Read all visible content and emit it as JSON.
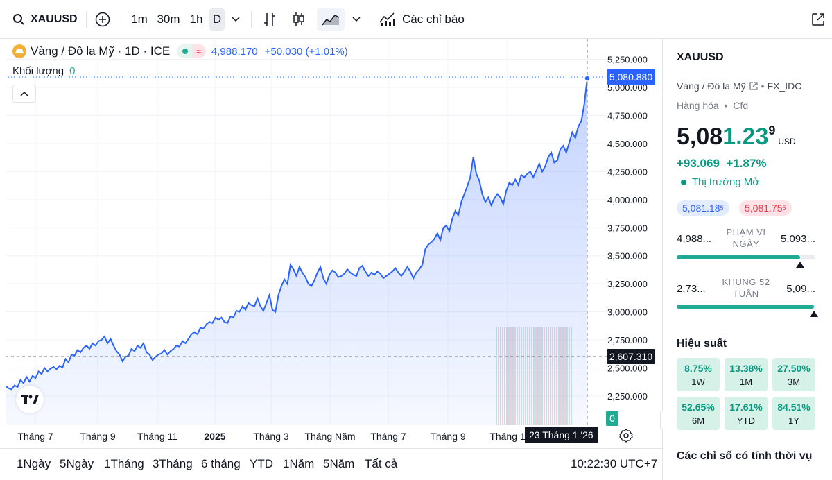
{
  "toolbar": {
    "symbol": "XAUUSD",
    "intervals": [
      "1m",
      "30m",
      "1h",
      "D"
    ],
    "active_interval": "D",
    "indicators_label": "Các chỉ báo"
  },
  "legend": {
    "title": "Vàng / Đô la Mỹ · 1D · ICE",
    "price": "4,988.170",
    "change": "+50.030 (+1.01%)",
    "volume_label": "Khối lượng",
    "volume_value": "0"
  },
  "price_axis": {
    "ticks": [
      "5,250.000",
      "5,000.000",
      "4,750.000",
      "4,500.000",
      "4,250.000",
      "4,000.000",
      "3,750.000",
      "3,500.000",
      "3,250.000",
      "3,000.000",
      "2,750.000",
      "2,500.000",
      "2,250.000"
    ],
    "current_price_tag": "5,080.880",
    "crosshair_price_tag": "2,607.310",
    "volume_tag": "0"
  },
  "time_axis": {
    "ticks": [
      "Tháng 7",
      "Tháng 9",
      "Tháng 11",
      "2025",
      "Tháng 3",
      "Tháng Năm",
      "Tháng 7",
      "Tháng 9",
      "Tháng 1"
    ],
    "crosshair_date": "23 Tháng 1 '26"
  },
  "chart_data": {
    "type": "area",
    "series": [
      {
        "values": [
          2340,
          2320,
          2310,
          2345,
          2330,
          2395,
          2365,
          2420,
          2380,
          2430,
          2410,
          2470,
          2445,
          2500,
          2470,
          2495,
          2510,
          2490,
          2520,
          2505,
          2580,
          2550,
          2620,
          2610,
          2660,
          2640,
          2680,
          2700,
          2670,
          2720,
          2700,
          2740,
          2750,
          2780,
          2720,
          2760,
          2700,
          2650,
          2620,
          2560,
          2600,
          2610,
          2670,
          2650,
          2700,
          2680,
          2720,
          2640,
          2620,
          2570,
          2600,
          2620,
          2630,
          2660,
          2620,
          2650,
          2670,
          2700,
          2690,
          2740,
          2720,
          2760,
          2800,
          2820,
          2800,
          2860,
          2850,
          2890,
          2910,
          2900,
          2950,
          2930,
          2950,
          2910,
          2900,
          2960,
          2950,
          3010,
          3000,
          3050,
          3020,
          3080,
          3060,
          3050,
          3120,
          3050,
          3010,
          3080,
          3150,
          3020,
          3000,
          3150,
          3230,
          3290,
          3250,
          3420,
          3380,
          3320,
          3400,
          3350,
          3310,
          3250,
          3230,
          3280,
          3350,
          3400,
          3300,
          3250,
          3330,
          3370,
          3350,
          3310,
          3320,
          3340,
          3380,
          3350,
          3330,
          3320,
          3390,
          3410,
          3360,
          3320,
          3350,
          3330,
          3360,
          3340,
          3300,
          3320,
          3340,
          3360,
          3390,
          3350,
          3320,
          3360,
          3400,
          3360,
          3300,
          3350,
          3380,
          3420,
          3560,
          3600,
          3620,
          3650,
          3700,
          3640,
          3750,
          3770,
          3720,
          3830,
          3900,
          3860,
          3980,
          4050,
          4120,
          4200,
          4380,
          4230,
          4170,
          4050,
          3980,
          4020,
          3950,
          4010,
          4050,
          4020,
          3960,
          4080,
          4150,
          4130,
          4180,
          4130,
          4220,
          4200,
          4230,
          4250,
          4200,
          4260,
          4320,
          4250,
          4300,
          4380,
          4420,
          4330,
          4350,
          4450,
          4480,
          4420,
          4510,
          4600,
          4550,
          4650,
          4700,
          4850,
          5080
        ]
      }
    ],
    "ylim": [
      2000,
      5350
    ]
  },
  "bottom": {
    "ranges": [
      "1Ngày",
      "5Ngày",
      "1Tháng",
      "3Tháng",
      "6 tháng",
      "YTD",
      "1Năm",
      "5Năm",
      "Tất cả"
    ],
    "time": "10:22:30 UTC+7"
  },
  "panel": {
    "symbol": "XAUUSD",
    "name": "Vàng / Đô la Mỹ",
    "exchange": "FX_IDC",
    "category": "Hàng hóa",
    "category_type": "Cfd",
    "price_main": "5,08",
    "price_highlight": "1.23",
    "price_small": "9",
    "currency": "USD",
    "change": "+93.069",
    "change_pct": "+1.87%",
    "market_status": "Thị trường Mở",
    "bid": "5,081.18",
    "bid_sup": "5",
    "ask": "5,081.75",
    "ask_sup": "5",
    "day_range": {
      "low": "4,988...",
      "label": "PHẠM VI NGÀY",
      "high": "5,093...",
      "level_pct": 89
    },
    "week52_range": {
      "low": "2,73...",
      "label": "KHUNG 52 TUẦN",
      "high": "5,09...",
      "level_pct": 99
    },
    "performance_title": "Hiệu suất",
    "performance": [
      {
        "value": "8.75%",
        "label": "1W"
      },
      {
        "value": "13.38%",
        "label": "1M"
      },
      {
        "value": "27.50%",
        "label": "3M"
      },
      {
        "value": "52.65%",
        "label": "6M"
      },
      {
        "value": "17.61%",
        "label": "YTD"
      },
      {
        "value": "84.51%",
        "label": "1Y"
      }
    ],
    "seasonal_title": "Các chỉ số có tính thời vụ"
  },
  "colors": {
    "line": "#2962ff",
    "positive": "#089981",
    "negative": "#f23645"
  }
}
